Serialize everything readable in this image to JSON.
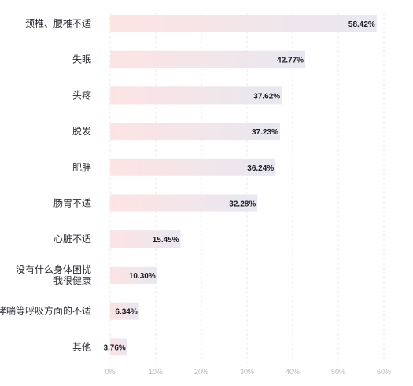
{
  "chart_data": {
    "type": "bar",
    "orientation": "horizontal",
    "categories": [
      "颈椎、腰椎不适",
      "失眠",
      "头疼",
      "脱发",
      "肥胖",
      "肠胃不适",
      "心脏不适",
      "没有什么身体困扰\n我很健康",
      "哮喘等呼吸方面的不适",
      "其他"
    ],
    "values": [
      58.42,
      42.77,
      37.62,
      37.23,
      36.24,
      32.28,
      15.45,
      10.3,
      6.34,
      3.76
    ],
    "value_labels": [
      "58.42%",
      "42.77%",
      "37.62%",
      "37.23%",
      "36.24%",
      "32.28%",
      "15.45%",
      "10.30%",
      "6.34%",
      "3.76%"
    ],
    "x_ticks": [
      0,
      10,
      20,
      30,
      40,
      50,
      60
    ],
    "x_tick_labels": [
      "0%",
      "10%",
      "20%",
      "30%",
      "40%",
      "50%",
      "60%"
    ],
    "xlim": [
      0,
      60
    ],
    "grid": true,
    "colors": {
      "bar_start": "#fde3e3",
      "bar_end": "#e8e8f0"
    }
  }
}
